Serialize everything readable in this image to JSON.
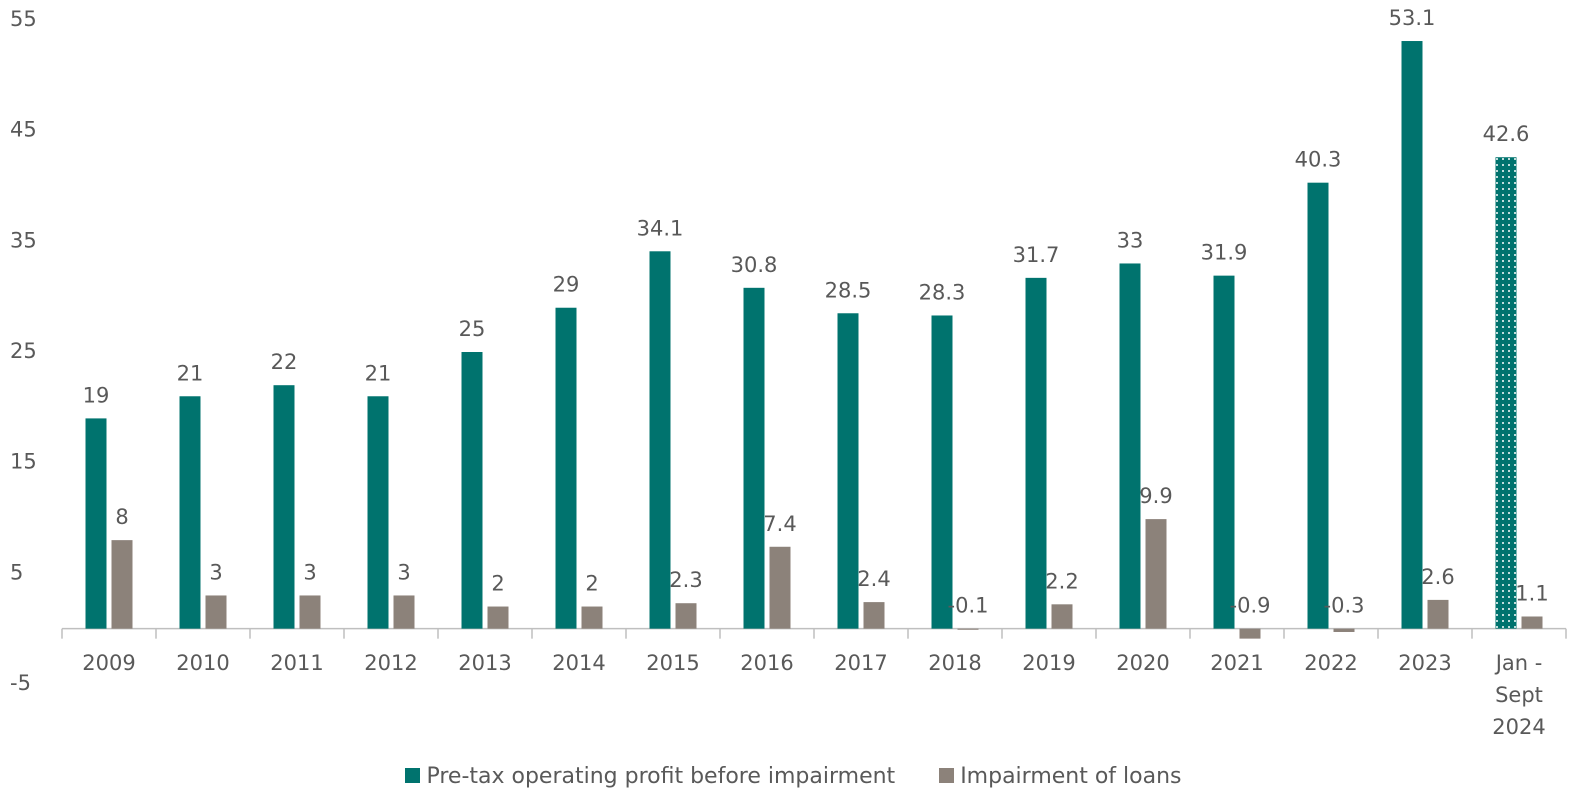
{
  "chart_data": {
    "type": "bar",
    "categories": [
      "2009",
      "2010",
      "2011",
      "2012",
      "2013",
      "2014",
      "2015",
      "2016",
      "2017",
      "2018",
      "2019",
      "2020",
      "2021",
      "2022",
      "2023",
      "Jan - Sept 2024"
    ],
    "series": [
      {
        "name": "Pre-tax operating profit before impairment",
        "color": "#00736e",
        "values": [
          19,
          21,
          22,
          21,
          25,
          29,
          34.1,
          30.8,
          28.5,
          28.3,
          31.7,
          33,
          31.9,
          40.3,
          53.1,
          42.6
        ]
      },
      {
        "name": "Impairment of loans",
        "color": "#8c827a",
        "values": [
          8,
          3,
          3,
          3,
          2,
          2,
          2.3,
          7.4,
          2.4,
          -0.1,
          2.2,
          9.9,
          -0.9,
          -0.3,
          2.6,
          1.1
        ]
      }
    ],
    "ylim": [
      -5,
      55
    ],
    "yticks": [
      -5,
      5,
      15,
      25,
      35,
      45,
      55
    ],
    "grid": false,
    "legend": "bottom"
  }
}
